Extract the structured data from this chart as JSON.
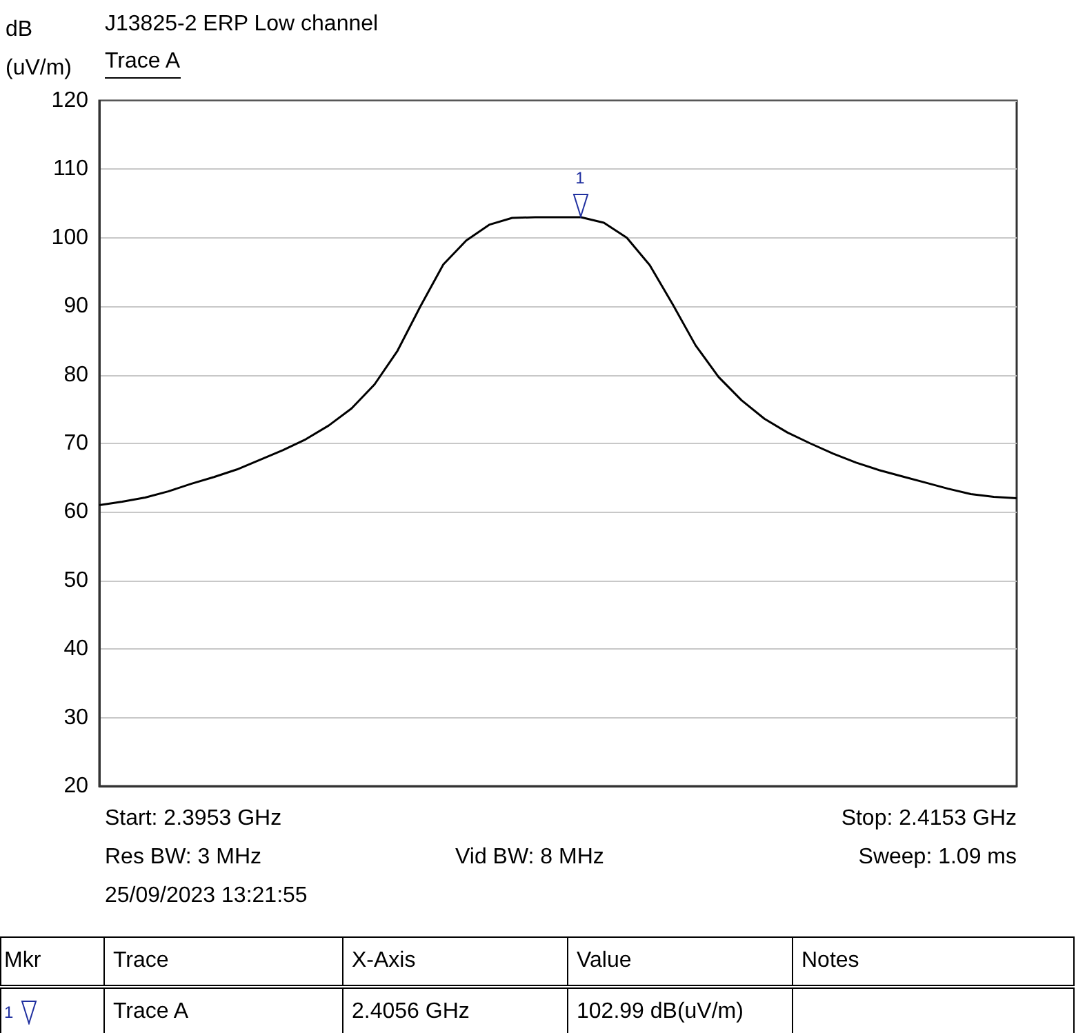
{
  "chart_data": {
    "type": "line",
    "title": "J13825-2 ERP Low channel",
    "ylabel": "dB\n(uV/m)",
    "categories": [
      null,
      null,
      null,
      null,
      null,
      null,
      null,
      null,
      null,
      null,
      null,
      null,
      null,
      null,
      null,
      null,
      null,
      null,
      null,
      null,
      null,
      null,
      null,
      null,
      null,
      null,
      null,
      null,
      null,
      null,
      null,
      null,
      null,
      null,
      null,
      null,
      null,
      null,
      null,
      null,
      null
    ],
    "series": [
      {
        "name": "Trace A",
        "color": "#000000",
        "values": [
          61.0,
          61.5,
          62.1,
          63.0,
          64.1,
          65.1,
          66.2,
          67.6,
          69.0,
          70.6,
          72.6,
          75.1,
          78.6,
          83.5,
          90.0,
          96.1,
          99.6,
          101.9,
          102.9,
          103.0,
          103.0,
          103.0,
          102.2,
          100.0,
          96.0,
          90.3,
          84.3,
          79.7,
          76.3,
          73.6,
          71.6,
          70.0,
          68.5,
          67.2,
          66.1,
          65.2,
          64.3,
          63.4,
          62.6,
          62.2,
          62.0
        ]
      }
    ],
    "ylim": [
      20,
      120
    ],
    "yticks": [
      20,
      30,
      40,
      50,
      60,
      70,
      80,
      90,
      100,
      110,
      120
    ],
    "grid": "y",
    "tick_labels": "y",
    "marker": "none",
    "line_style": "solid",
    "annotations": [
      "Start: 2.3953 GHz",
      "Stop: 2.4153 GHz",
      "Res BW: 3 MHz",
      "Vid BW: 8 MHz",
      "Sweep: 1.09 ms",
      "25/09/2023 13:21:55",
      "Mkr",
      "Trace",
      "X-Axis",
      "Value",
      "Notes",
      "1",
      "Trace A",
      "2.4056 GHz",
      "102.99 dB(uV/m)",
      {
        "text": "1",
        "y": 102.99
      }
    ]
  }
}
